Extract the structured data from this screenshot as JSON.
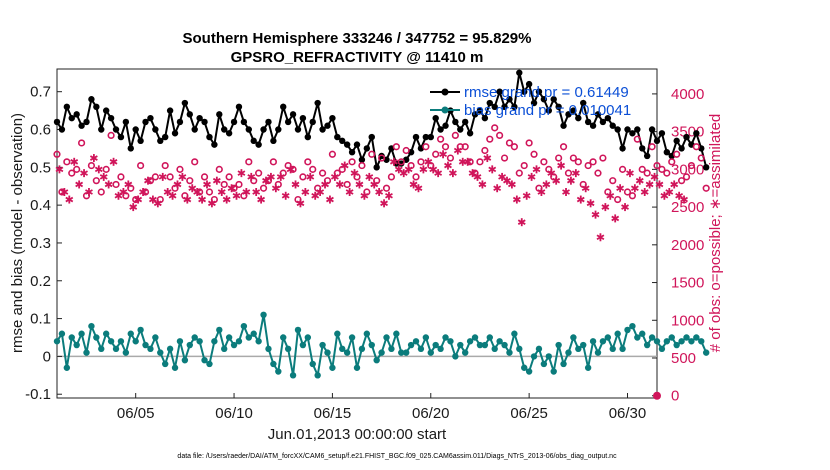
{
  "chart_data": {
    "type": "line",
    "title_line1": "Southern Hemisphere 333246 / 347752 = 95.829%",
    "title_line2": "GPSRO_REFRACTIVITY @ 11410 m",
    "xlabel": "Jun.01,2013 00:00:00 start",
    "ylabel": "rmse and bias (model - observation)",
    "ylabel_right": "# of obs: o=possible; ∗=assimilated",
    "xlim": [
      1.0,
      31.5
    ],
    "ylim": [
      -0.11,
      0.76
    ],
    "ylim_right": [
      -30,
      4330
    ],
    "x_ticks": [
      {
        "x": 5,
        "label": "06/05"
      },
      {
        "x": 10,
        "label": "06/10"
      },
      {
        "x": 15,
        "label": "06/15"
      },
      {
        "x": 20,
        "label": "06/20"
      },
      {
        "x": 25,
        "label": "06/25"
      },
      {
        "x": 30,
        "label": "06/30"
      }
    ],
    "y_ticks": [
      {
        "v": -0.1,
        "label": "-0.1"
      },
      {
        "v": 0,
        "label": "0"
      },
      {
        "v": 0.1,
        "label": "0.1"
      },
      {
        "v": 0.2,
        "label": "0.2"
      },
      {
        "v": 0.3,
        "label": "0.3"
      },
      {
        "v": 0.4,
        "label": "0.4"
      },
      {
        "v": 0.5,
        "label": "0.5"
      },
      {
        "v": 0.6,
        "label": "0.6"
      },
      {
        "v": 0.7,
        "label": "0.7"
      }
    ],
    "y_ticks_right": [
      {
        "v": 0,
        "label": "0"
      },
      {
        "v": 500,
        "label": "500"
      },
      {
        "v": 1000,
        "label": "1000"
      },
      {
        "v": 1500,
        "label": "1500"
      },
      {
        "v": 2000,
        "label": "2000"
      },
      {
        "v": 2500,
        "label": "2500"
      },
      {
        "v": 3000,
        "label": "3000"
      },
      {
        "v": 3500,
        "label": "3500"
      },
      {
        "v": 4000,
        "label": "4000"
      }
    ],
    "legend": [
      {
        "name": "rmse grand pr = 0.61449",
        "color": "#000000"
      },
      {
        "name": "bias grand pr = 0.010041",
        "color": "#0b7c7c"
      }
    ],
    "series": [
      {
        "name": "rmse",
        "axis": "left",
        "color": "#000000",
        "start": 1.0,
        "step": 0.25,
        "values": [
          0.62,
          0.6,
          0.66,
          0.63,
          0.64,
          0.61,
          0.62,
          0.68,
          0.66,
          0.6,
          0.65,
          0.63,
          0.6,
          0.58,
          0.62,
          0.55,
          0.6,
          0.57,
          0.62,
          0.63,
          0.6,
          0.57,
          0.58,
          0.65,
          0.59,
          0.62,
          0.67,
          0.64,
          0.6,
          0.63,
          0.62,
          0.58,
          0.56,
          0.64,
          0.6,
          0.59,
          0.62,
          0.66,
          0.62,
          0.6,
          0.57,
          0.56,
          0.6,
          0.62,
          0.57,
          0.6,
          0.66,
          0.62,
          0.64,
          0.6,
          0.63,
          0.58,
          0.62,
          0.67,
          0.6,
          0.61,
          0.63,
          0.58,
          0.57,
          0.56,
          0.54,
          0.56,
          0.52,
          0.55,
          0.58,
          0.5,
          0.53,
          0.52,
          0.55,
          0.51,
          0.51,
          0.52,
          0.54,
          0.58,
          0.55,
          0.58,
          0.58,
          0.63,
          0.6,
          0.61,
          0.65,
          0.62,
          0.6,
          0.62,
          0.59,
          0.64,
          0.65,
          0.63,
          0.67,
          0.66,
          0.7,
          0.66,
          0.68,
          0.66,
          0.75,
          0.7,
          0.72,
          0.67,
          0.7,
          0.68,
          0.65,
          0.68,
          0.66,
          0.61,
          0.64,
          0.65,
          0.63,
          0.67,
          0.62,
          0.61,
          0.64,
          0.62,
          0.63,
          0.61,
          0.6,
          0.55,
          0.6,
          0.59,
          0.6,
          0.55,
          0.53,
          0.6,
          0.57,
          0.59,
          0.54,
          0.53,
          0.57,
          0.55,
          0.58,
          0.56,
          0.59,
          0.55,
          0.5
        ]
      },
      {
        "name": "bias",
        "axis": "left",
        "color": "#0b7c7c",
        "start": 1.0,
        "step": 0.25,
        "values": [
          0.04,
          0.06,
          -0.03,
          0.05,
          0.03,
          0.06,
          0.01,
          0.08,
          0.05,
          0.02,
          0.06,
          0.04,
          0.02,
          0.04,
          0.01,
          0.06,
          0.04,
          0.07,
          0.03,
          0.02,
          0.05,
          0.01,
          -0.02,
          0.02,
          -0.03,
          0.04,
          -0.01,
          0.03,
          0.05,
          0.04,
          -0.01,
          -0.02,
          0.04,
          0.07,
          0.02,
          0.05,
          0.03,
          0.04,
          0.08,
          0.05,
          0.06,
          0.04,
          0.11,
          0.02,
          -0.02,
          -0.04,
          0.05,
          0.02,
          -0.05,
          0.07,
          0.03,
          0.05,
          -0.02,
          -0.05,
          0.03,
          0.01,
          -0.03,
          0.06,
          0.02,
          0.01,
          0.05,
          -0.03,
          0.02,
          0.06,
          0.03,
          -0.01,
          0.01,
          0.05,
          0.02,
          0.06,
          0.01,
          0.01,
          0.03,
          0.04,
          0.02,
          0.05,
          0.01,
          0.03,
          0.02,
          0.05,
          0.04,
          0.0,
          0.03,
          0.01,
          0.04,
          0.05,
          0.03,
          0.03,
          0.05,
          0.02,
          0.04,
          0.03,
          0.01,
          0.06,
          0.02,
          -0.03,
          -0.04,
          0.0,
          0.02,
          -0.02,
          0.0,
          -0.04,
          0.03,
          -0.02,
          0.01,
          0.05,
          0.02,
          0.03,
          -0.03,
          0.04,
          0.01,
          0.04,
          0.05,
          0.02,
          0.06,
          0.02,
          0.07,
          0.08,
          0.05,
          0.06,
          0.03,
          0.05,
          0.04,
          0.02,
          0.04,
          0.05,
          0.03,
          0.04,
          0.05,
          0.04,
          0.05,
          0.04,
          0.01
        ]
      },
      {
        "name": "# possible",
        "axis": "right",
        "color": "#d0155a",
        "marker": "o",
        "start": 1.0,
        "step": 0.25,
        "values": [
          3200,
          2700,
          3100,
          2950,
          3000,
          3350,
          2650,
          3050,
          2850,
          2700,
          3000,
          3450,
          2800,
          2900,
          2650,
          2750,
          2600,
          3050,
          2700,
          2850,
          2900,
          2600,
          3050,
          2900,
          2750,
          3000,
          2650,
          2850,
          3100,
          2700,
          2900,
          2700,
          2600,
          3000,
          2800,
          2900,
          2750,
          2800,
          2650,
          3100,
          2850,
          2950,
          2750,
          2850,
          3100,
          2800,
          2950,
          3050,
          3000,
          2600,
          2900,
          3100,
          3000,
          2750,
          2950,
          2850,
          3200,
          2950,
          3000,
          2800,
          3100,
          2900,
          3050,
          2700,
          3200,
          2850,
          3150,
          2750,
          2900,
          3300,
          3100,
          3250,
          3050,
          2900,
          3100,
          3300,
          3050,
          3200,
          3400,
          3300,
          3150,
          3450,
          3300,
          3300,
          3100,
          2950,
          3100,
          3250,
          3400,
          3550,
          3450,
          3150,
          3350,
          3300,
          2950,
          3050,
          3350,
          3200,
          2750,
          3100,
          3000,
          2900,
          3150,
          3300,
          2950,
          3150,
          3100,
          2800,
          3050,
          3100,
          2950,
          3150,
          2700,
          2850,
          2600,
          3000,
          2700,
          2650,
          3400,
          3000,
          2950,
          3300,
          3050,
          3000,
          2950,
          3100,
          3200,
          2850,
          2900,
          3050,
          3300,
          3150,
          2750
        ]
      },
      {
        "name": "# assimilated",
        "axis": "right",
        "color": "#d0155a",
        "marker": "*",
        "start": 1.125,
        "step": 0.25,
        "values": [
          3000,
          2700,
          2600,
          3100,
          2800,
          2950,
          2700,
          3150,
          3000,
          2900,
          2800,
          3100,
          2650,
          2700,
          2800,
          2500,
          2600,
          2700,
          2850,
          2600,
          2550,
          2900,
          2700,
          2650,
          2800,
          2900,
          2600,
          2750,
          2700,
          2600,
          2800,
          2550,
          2850,
          2700,
          2600,
          2750,
          2650,
          2950,
          2700,
          2900,
          2700,
          2600,
          2850,
          2900,
          2750,
          2900,
          2650,
          3000,
          2800,
          2550,
          2700,
          2900,
          2650,
          2700,
          2800,
          2600,
          2900,
          2800,
          3050,
          2700,
          2950,
          2800,
          2650,
          2900,
          2800,
          2700,
          2550,
          2650,
          3100,
          3000,
          2950,
          3000,
          2800,
          2750,
          3000,
          3100,
          3000,
          2950,
          3200,
          3050,
          2950,
          3250,
          3100,
          3100,
          2950,
          2900,
          2800,
          3150,
          3000,
          2750,
          2900,
          2850,
          2800,
          2600,
          2300,
          2650,
          2900,
          3000,
          2700,
          2800,
          2950,
          2850,
          3050,
          2700,
          2850,
          2950,
          2600,
          2750,
          2550,
          2400,
          2100,
          2500,
          2650,
          2350,
          2750,
          2500,
          2950,
          2750,
          2850,
          2700,
          2800,
          2900,
          2800,
          2650,
          2700,
          2800,
          2650,
          2600
        ]
      }
    ]
  },
  "footer": "data file: /Users/raeder/DAI/ATM_forcXX/CAM6_setup/f.e21.FHIST_BGC.f09_025.CAM6assim.011/Diags_NTrS_2013-06/obs_diag_output.nc"
}
